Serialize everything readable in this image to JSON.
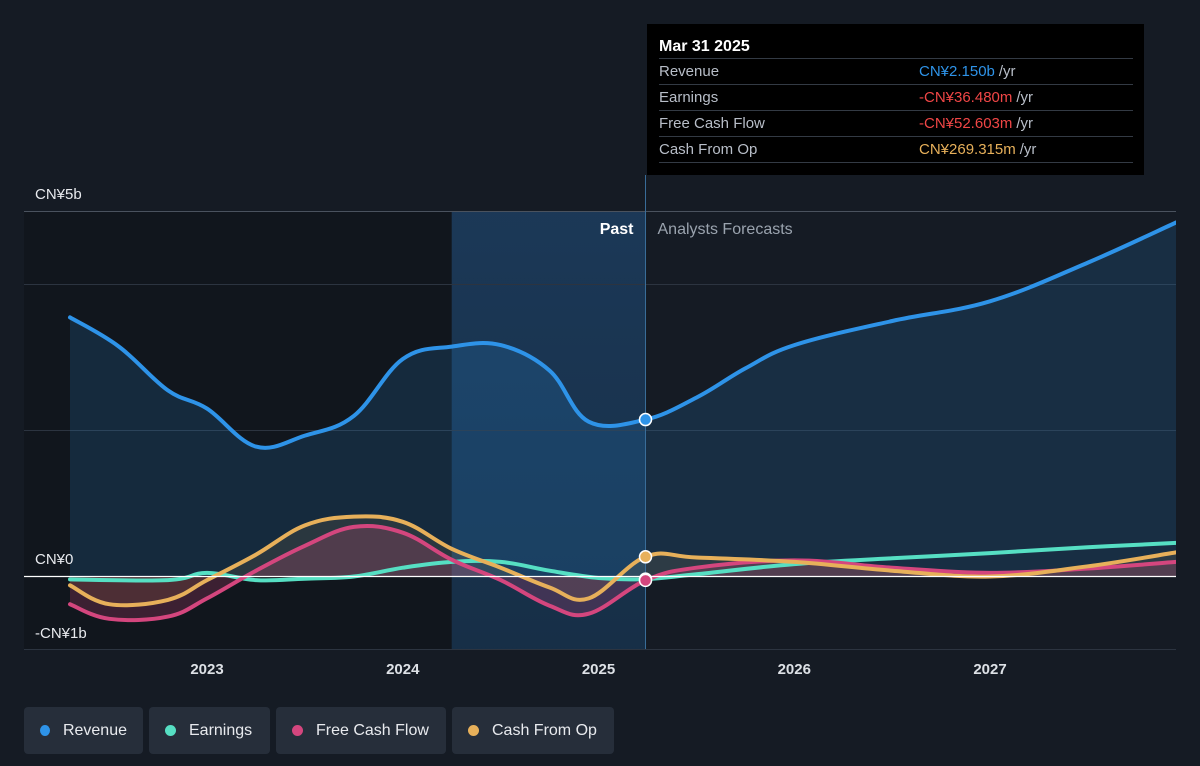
{
  "colors": {
    "revenue": "#2e93e8",
    "earnings": "#56dfc3",
    "free_cash_flow": "#d4467e",
    "cash_from_op": "#e7b05a",
    "negative": "#f04646",
    "background": "#151b24"
  },
  "tooltip": {
    "date": "Mar 31 2025",
    "rows": [
      {
        "label": "Revenue",
        "value": "CN¥2.150b",
        "unit": "/yr",
        "color": "#2e93e8"
      },
      {
        "label": "Earnings",
        "value": "-CN¥36.480m",
        "unit": "/yr",
        "color": "#f04646"
      },
      {
        "label": "Free Cash Flow",
        "value": "-CN¥52.603m",
        "unit": "/yr",
        "color": "#f04646"
      },
      {
        "label": "Cash From Op",
        "value": "CN¥269.315m",
        "unit": "/yr",
        "color": "#e7b05a"
      }
    ]
  },
  "legend": [
    {
      "label": "Revenue",
      "color": "#2e93e8"
    },
    {
      "label": "Earnings",
      "color": "#56dfc3"
    },
    {
      "label": "Free Cash Flow",
      "color": "#d4467e"
    },
    {
      "label": "Cash From Op",
      "color": "#e7b05a"
    }
  ],
  "chart_data": {
    "type": "line",
    "unit": "CN¥ billions",
    "ylim": [
      -1,
      5
    ],
    "xlim": [
      2022.3,
      2027.95
    ],
    "y_tick_labels": [
      {
        "value": 5,
        "label": "CN¥5b"
      },
      {
        "value": 0,
        "label": "CN¥0"
      },
      {
        "value": -1,
        "label": "-CN¥1b"
      }
    ],
    "x_tick_labels": [
      {
        "value": 2023,
        "label": "2023"
      },
      {
        "value": 2024,
        "label": "2024"
      },
      {
        "value": 2025,
        "label": "2025"
      },
      {
        "value": 2026,
        "label": "2026"
      },
      {
        "value": 2027,
        "label": "2027"
      }
    ],
    "gridlines": [
      5,
      4,
      2,
      -1
    ],
    "past_label": "Past",
    "forecast_label": "Analysts Forecasts",
    "current_x": 2025.24,
    "highlight_start": 2024.25,
    "series": [
      {
        "name": "Revenue",
        "key": "revenue",
        "fill": true,
        "points": [
          [
            2022.3,
            3.55
          ],
          [
            2022.55,
            3.15
          ],
          [
            2022.8,
            2.55
          ],
          [
            2023.0,
            2.3
          ],
          [
            2023.25,
            1.78
          ],
          [
            2023.5,
            1.93
          ],
          [
            2023.75,
            2.2
          ],
          [
            2024.0,
            2.98
          ],
          [
            2024.25,
            3.15
          ],
          [
            2024.5,
            3.17
          ],
          [
            2024.75,
            2.82
          ],
          [
            2024.95,
            2.12
          ],
          [
            2025.24,
            2.15
          ],
          [
            2025.5,
            2.45
          ],
          [
            2025.75,
            2.85
          ],
          [
            2026.0,
            3.17
          ],
          [
            2026.5,
            3.5
          ],
          [
            2027.0,
            3.77
          ],
          [
            2027.5,
            4.3
          ],
          [
            2027.95,
            4.85
          ]
        ]
      },
      {
        "name": "Earnings",
        "key": "earnings",
        "fill": false,
        "points": [
          [
            2022.3,
            -0.04
          ],
          [
            2022.8,
            -0.05
          ],
          [
            2023.0,
            0.05
          ],
          [
            2023.25,
            -0.05
          ],
          [
            2023.5,
            -0.03
          ],
          [
            2023.75,
            0.0
          ],
          [
            2024.0,
            0.12
          ],
          [
            2024.25,
            0.2
          ],
          [
            2024.5,
            0.2
          ],
          [
            2024.75,
            0.08
          ],
          [
            2025.0,
            -0.02
          ],
          [
            2025.24,
            -0.036
          ],
          [
            2025.5,
            0.03
          ],
          [
            2026.0,
            0.17
          ],
          [
            2026.5,
            0.25
          ],
          [
            2027.0,
            0.32
          ],
          [
            2027.5,
            0.4
          ],
          [
            2027.95,
            0.46
          ]
        ]
      },
      {
        "name": "Free Cash Flow",
        "key": "free_cash_flow",
        "fill": true,
        "points": [
          [
            2022.3,
            -0.38
          ],
          [
            2022.5,
            -0.58
          ],
          [
            2022.8,
            -0.55
          ],
          [
            2023.0,
            -0.3
          ],
          [
            2023.25,
            0.08
          ],
          [
            2023.5,
            0.42
          ],
          [
            2023.75,
            0.68
          ],
          [
            2024.0,
            0.6
          ],
          [
            2024.25,
            0.23
          ],
          [
            2024.5,
            -0.05
          ],
          [
            2024.75,
            -0.4
          ],
          [
            2024.95,
            -0.51
          ],
          [
            2025.24,
            -0.053
          ],
          [
            2025.5,
            0.12
          ],
          [
            2026.0,
            0.22
          ],
          [
            2026.5,
            0.12
          ],
          [
            2027.0,
            0.05
          ],
          [
            2027.5,
            0.11
          ],
          [
            2027.95,
            0.2
          ]
        ]
      },
      {
        "name": "Cash From Op",
        "key": "cash_from_op",
        "fill": true,
        "points": [
          [
            2022.3,
            -0.12
          ],
          [
            2022.5,
            -0.38
          ],
          [
            2022.8,
            -0.32
          ],
          [
            2023.0,
            -0.05
          ],
          [
            2023.25,
            0.3
          ],
          [
            2023.5,
            0.7
          ],
          [
            2023.75,
            0.82
          ],
          [
            2024.0,
            0.75
          ],
          [
            2024.25,
            0.38
          ],
          [
            2024.5,
            0.12
          ],
          [
            2024.75,
            -0.15
          ],
          [
            2024.95,
            -0.3
          ],
          [
            2025.24,
            0.27
          ],
          [
            2025.5,
            0.26
          ],
          [
            2026.0,
            0.2
          ],
          [
            2026.5,
            0.08
          ],
          [
            2027.0,
            0.0
          ],
          [
            2027.5,
            0.14
          ],
          [
            2027.95,
            0.33
          ]
        ]
      }
    ]
  }
}
